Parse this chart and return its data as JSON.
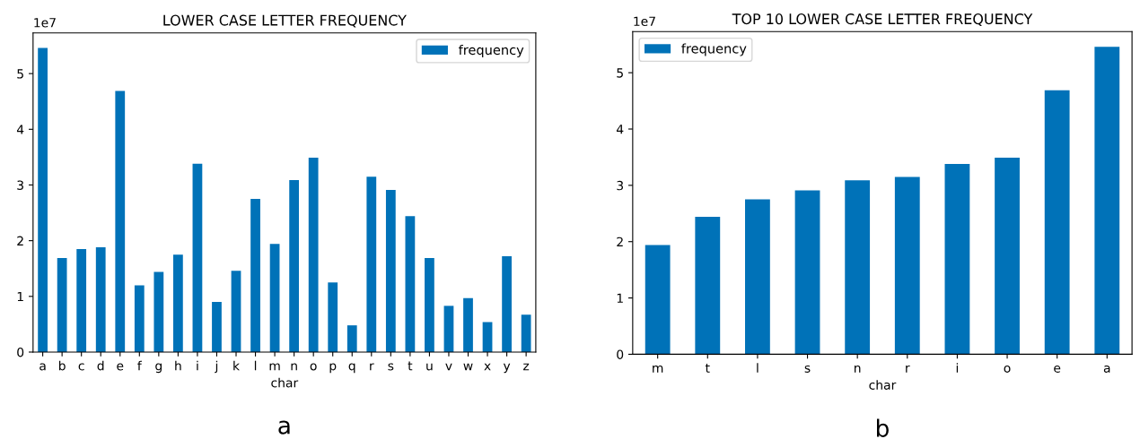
{
  "chart_data": [
    {
      "type": "bar",
      "title": "LOWER CASE LETTER FREQUENCY",
      "xlabel": "char",
      "annotations": [
        "1e7",
        "a"
      ],
      "categories": [
        "a",
        "b",
        "c",
        "d",
        "e",
        "f",
        "g",
        "h",
        "i",
        "j",
        "k",
        "l",
        "m",
        "n",
        "o",
        "p",
        "q",
        "r",
        "s",
        "t",
        "u",
        "v",
        "w",
        "x",
        "y",
        "z"
      ],
      "series": [
        {
          "name": "frequency",
          "color": "#0072b8",
          "values": [
            5.46,
            1.69,
            1.85,
            1.88,
            4.69,
            1.2,
            1.44,
            1.75,
            3.38,
            0.9,
            1.46,
            2.75,
            1.94,
            3.09,
            3.49,
            1.25,
            0.48,
            3.15,
            2.91,
            2.44,
            1.69,
            0.83,
            0.97,
            0.54,
            1.72,
            0.67
          ]
        }
      ],
      "ylim": [
        0,
        5.73
      ],
      "yticks": [
        0,
        1,
        2,
        3,
        4,
        5
      ],
      "legend": "top right",
      "grid": false
    },
    {
      "type": "bar",
      "title": "TOP 10 LOWER CASE LETTER FREQUENCY",
      "xlabel": "char",
      "annotations": [
        "1e7",
        "b"
      ],
      "categories": [
        "m",
        "t",
        "l",
        "s",
        "n",
        "r",
        "i",
        "o",
        "e",
        "a"
      ],
      "series": [
        {
          "name": "frequency",
          "color": "#0072b8",
          "values": [
            1.94,
            2.44,
            2.75,
            2.91,
            3.09,
            3.15,
            3.38,
            3.49,
            4.69,
            5.46
          ]
        }
      ],
      "ylim": [
        0,
        5.73
      ],
      "yticks": [
        0,
        1,
        2,
        3,
        4,
        5
      ],
      "legend": "top left",
      "grid": false
    }
  ]
}
